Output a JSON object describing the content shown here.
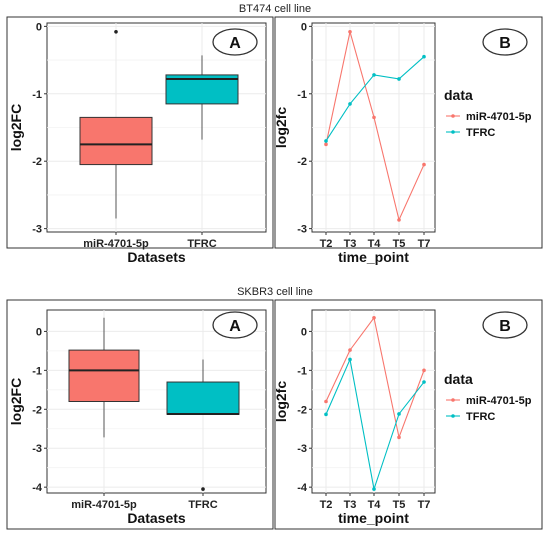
{
  "chart_data": [
    {
      "type": "box",
      "section_title": "BT474 cell line",
      "badge": "A",
      "xlabel": "Datasets",
      "ylabel": "log2FC",
      "ylim": [
        -3.05,
        0.05
      ],
      "yticks": [
        0,
        -1,
        -2,
        -3
      ],
      "yticklabels": [
        "0",
        "-1",
        "-2",
        "-3"
      ],
      "categories": [
        "miR-4701-5p",
        "TFRC"
      ],
      "boxes": [
        {
          "name": "miR-4701-5p",
          "color": "#F8766D",
          "min": -2.85,
          "q1": -2.05,
          "median": -1.75,
          "q3": -1.35,
          "max": -1.35,
          "outliers": [
            -0.08
          ]
        },
        {
          "name": "TFRC",
          "color": "#00BFC4",
          "min": -1.68,
          "q1": -1.15,
          "median": -0.78,
          "q3": -0.72,
          "max": -0.43,
          "outliers": []
        }
      ],
      "grid": true
    },
    {
      "type": "line",
      "section_title": "BT474 cell line",
      "badge": "B",
      "xlabel": "time_point",
      "ylabel": "log2fc",
      "categories": [
        "T2",
        "T3",
        "T4",
        "T5",
        "T7"
      ],
      "ylim": [
        -3.05,
        0.05
      ],
      "yticks": [
        0,
        -1,
        -2,
        -3
      ],
      "yticklabels": [
        "0",
        "-1",
        "-2",
        "-3"
      ],
      "legend_title": "data",
      "legend_position": "right",
      "series": [
        {
          "name": "miR-4701-5p",
          "color": "#F8766D",
          "values": [
            -1.75,
            -0.08,
            -1.35,
            -2.87,
            -2.05
          ]
        },
        {
          "name": "TFRC",
          "color": "#00BFC4",
          "values": [
            -1.7,
            -1.15,
            -0.72,
            -0.78,
            -0.45
          ]
        }
      ],
      "grid": true
    },
    {
      "type": "box",
      "section_title": "SKBR3 cell line",
      "badge": "A",
      "xlabel": "Datasets",
      "ylabel": "log2FC",
      "ylim": [
        -4.15,
        0.55
      ],
      "yticks": [
        0,
        -1,
        -2,
        -3,
        -4
      ],
      "yticklabels": [
        "0",
        "-1",
        "-2",
        "-3",
        "-4"
      ],
      "categories": [
        "miR-4701-5p",
        "TFRC"
      ],
      "boxes": [
        {
          "name": "miR-4701-5p",
          "color": "#F8766D",
          "min": -2.72,
          "q1": -1.8,
          "median": -1.0,
          "q3": -0.48,
          "max": 0.35,
          "outliers": []
        },
        {
          "name": "TFRC",
          "color": "#00BFC4",
          "min": -2.13,
          "q1": -2.13,
          "median": -2.12,
          "q3": -1.3,
          "max": -0.72,
          "outliers": [
            -4.05
          ]
        }
      ],
      "grid": true
    },
    {
      "type": "line",
      "section_title": "SKBR3 cell line",
      "badge": "B",
      "xlabel": "time_point",
      "ylabel": "log2fc",
      "categories": [
        "T2",
        "T3",
        "T4",
        "T5",
        "T7"
      ],
      "ylim": [
        -4.15,
        0.55
      ],
      "yticks": [
        0,
        -1,
        -2,
        -3,
        -4
      ],
      "yticklabels": [
        "0",
        "-1",
        "-2",
        "-3",
        "-4"
      ],
      "legend_title": "data",
      "legend_position": "right",
      "series": [
        {
          "name": "miR-4701-5p",
          "color": "#F8766D",
          "values": [
            -1.8,
            -0.48,
            0.35,
            -2.72,
            -1.0
          ]
        },
        {
          "name": "TFRC",
          "color": "#00BFC4",
          "values": [
            -2.13,
            -0.72,
            -4.05,
            -2.12,
            -1.3
          ]
        }
      ],
      "grid": true
    }
  ]
}
